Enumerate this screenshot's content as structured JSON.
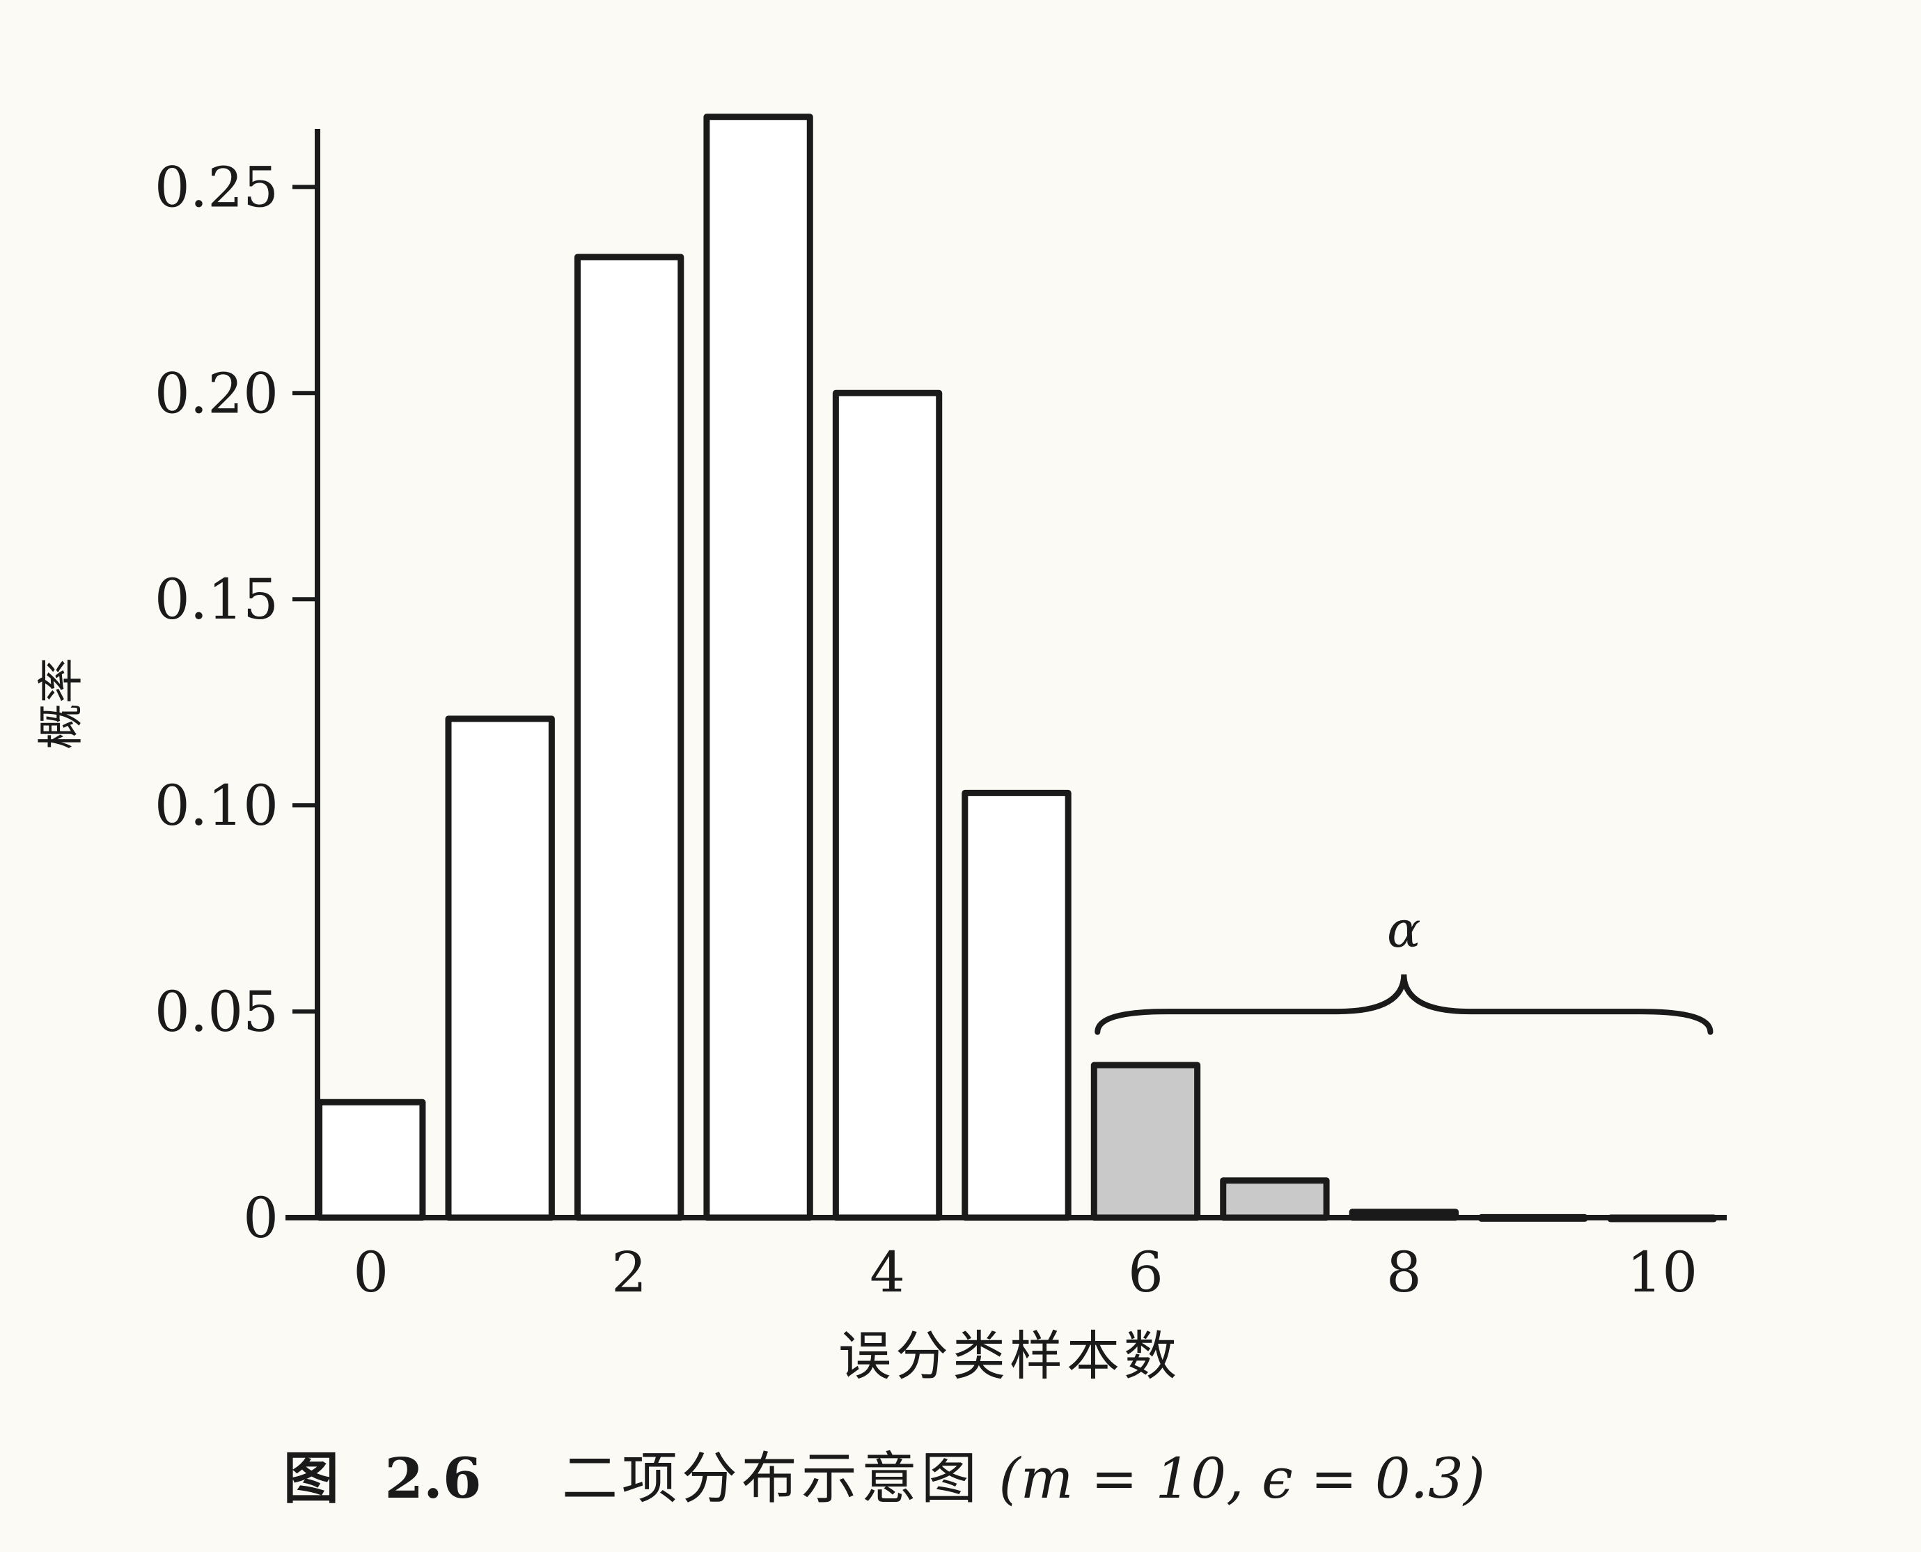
{
  "chart_data": {
    "type": "bar",
    "categories": [
      0,
      1,
      2,
      3,
      4,
      5,
      6,
      7,
      8,
      9,
      10
    ],
    "values": [
      0.028,
      0.121,
      0.233,
      0.267,
      0.2,
      0.103,
      0.037,
      0.009,
      0.0014,
      0.0001,
      5.9e-06
    ],
    "highlighted_categories": [
      6,
      7,
      8,
      9,
      10
    ],
    "xlabel": "误分类样本数",
    "ylabel": "概率",
    "ylim": [
      0,
      0.27
    ],
    "xlim": [
      -0.5,
      10.5
    ],
    "xticks": [
      0,
      2,
      4,
      6,
      8,
      10
    ],
    "xtick_labels": [
      "0",
      "2",
      "4",
      "6",
      "8",
      "10"
    ],
    "yticks": [
      0,
      0.05,
      0.1,
      0.15,
      0.2,
      0.25
    ],
    "ytick_labels": [
      "0",
      "0.05",
      "0.10",
      "0.15",
      "0.20",
      "0.25"
    ],
    "annotation": {
      "text": "α",
      "spans_categories": [
        6,
        10
      ]
    },
    "grid": false,
    "colors": {
      "bar_fill": "#ffffff",
      "highlight_fill": "#c9c9c9",
      "stroke": "#1a1a1a",
      "background": "#fbfaf5"
    }
  },
  "caption": {
    "figure_label": "图",
    "figure_number": "2.6",
    "text": "二项分布示意图",
    "formula": "(m = 10, ϵ = 0.3)"
  }
}
